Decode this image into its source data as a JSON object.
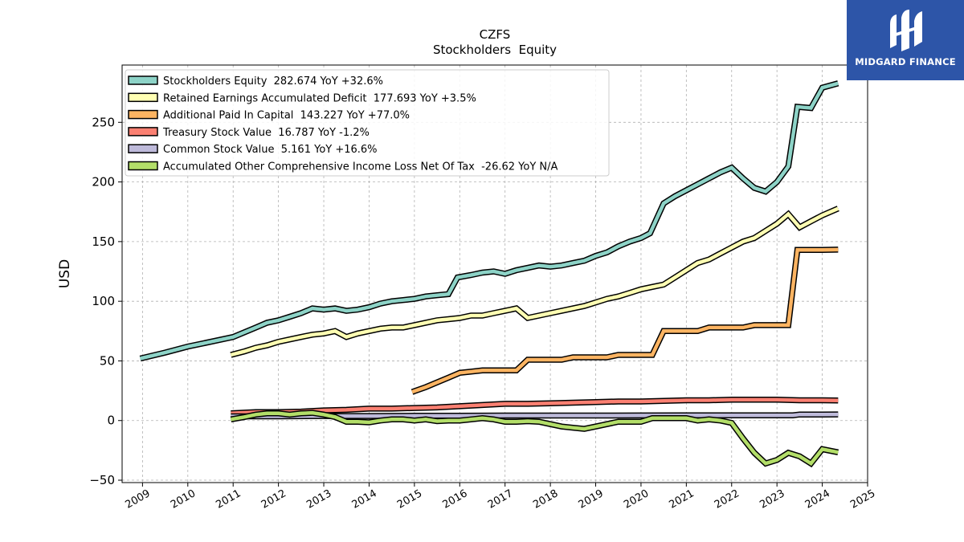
{
  "logo": {
    "text": "MIDGARD FINANCE"
  },
  "chart_data": {
    "type": "line",
    "title": "CZFS",
    "subtitle": "Stockholders  Equity",
    "xlabel": "",
    "ylabel": "USD",
    "xlim": [
      2008.55,
      2025.0
    ],
    "ylim": [
      -52,
      298
    ],
    "xticks": [
      2009,
      2010,
      2011,
      2012,
      2013,
      2014,
      2015,
      2016,
      2017,
      2018,
      2019,
      2020,
      2021,
      2022,
      2023,
      2024,
      2025
    ],
    "yticks": [
      -50,
      0,
      50,
      100,
      150,
      200,
      250
    ],
    "grid": true,
    "legend_position": "top-left",
    "series": [
      {
        "name": "Stockholders Equity  282.674 YoY +32.6%",
        "color": "#8dd3c7",
        "points": [
          [
            2008.95,
            52
          ],
          [
            2009.5,
            57
          ],
          [
            2010,
            62
          ],
          [
            2010.5,
            66
          ],
          [
            2011,
            70
          ],
          [
            2011.25,
            74
          ],
          [
            2011.5,
            78
          ],
          [
            2011.75,
            82
          ],
          [
            2012,
            84
          ],
          [
            2012.25,
            87
          ],
          [
            2012.5,
            90
          ],
          [
            2012.75,
            94
          ],
          [
            2013,
            93
          ],
          [
            2013.25,
            94
          ],
          [
            2013.5,
            92
          ],
          [
            2013.75,
            93
          ],
          [
            2014,
            95
          ],
          [
            2014.25,
            98
          ],
          [
            2014.5,
            100
          ],
          [
            2014.75,
            101
          ],
          [
            2015,
            102
          ],
          [
            2015.25,
            104
          ],
          [
            2015.5,
            105
          ],
          [
            2015.75,
            106
          ],
          [
            2015.95,
            120
          ],
          [
            2016.25,
            122
          ],
          [
            2016.5,
            124
          ],
          [
            2016.75,
            125
          ],
          [
            2017,
            123
          ],
          [
            2017.25,
            126
          ],
          [
            2017.5,
            128
          ],
          [
            2017.75,
            130
          ],
          [
            2018,
            129
          ],
          [
            2018.25,
            130
          ],
          [
            2018.5,
            132
          ],
          [
            2018.75,
            134
          ],
          [
            2019,
            138
          ],
          [
            2019.25,
            141
          ],
          [
            2019.5,
            146
          ],
          [
            2019.75,
            150
          ],
          [
            2020,
            153
          ],
          [
            2020.2,
            157
          ],
          [
            2020.5,
            182
          ],
          [
            2020.75,
            188
          ],
          [
            2021,
            193
          ],
          [
            2021.25,
            198
          ],
          [
            2021.5,
            203
          ],
          [
            2021.75,
            208
          ],
          [
            2022,
            212
          ],
          [
            2022.25,
            203
          ],
          [
            2022.5,
            195
          ],
          [
            2022.75,
            192
          ],
          [
            2023,
            200
          ],
          [
            2023.25,
            213
          ],
          [
            2023.45,
            263
          ],
          [
            2023.75,
            262
          ],
          [
            2024,
            279
          ],
          [
            2024.35,
            282.674
          ]
        ]
      },
      {
        "name": "Retained Earnings Accumulated Deficit  177.693 YoY +3.5%",
        "color": "#ffffb3",
        "points": [
          [
            2010.95,
            55
          ],
          [
            2011.25,
            58
          ],
          [
            2011.5,
            61
          ],
          [
            2011.75,
            63
          ],
          [
            2012,
            66
          ],
          [
            2012.25,
            68
          ],
          [
            2012.5,
            70
          ],
          [
            2012.75,
            72
          ],
          [
            2013,
            73
          ],
          [
            2013.25,
            75
          ],
          [
            2013.5,
            70
          ],
          [
            2013.75,
            73
          ],
          [
            2014,
            75
          ],
          [
            2014.25,
            77
          ],
          [
            2014.5,
            78
          ],
          [
            2014.75,
            78
          ],
          [
            2015,
            80
          ],
          [
            2015.25,
            82
          ],
          [
            2015.5,
            84
          ],
          [
            2015.75,
            85
          ],
          [
            2016,
            86
          ],
          [
            2016.25,
            88
          ],
          [
            2016.5,
            88
          ],
          [
            2016.75,
            90
          ],
          [
            2017,
            92
          ],
          [
            2017.25,
            94
          ],
          [
            2017.5,
            86
          ],
          [
            2017.75,
            88
          ],
          [
            2018,
            90
          ],
          [
            2018.25,
            92
          ],
          [
            2018.5,
            94
          ],
          [
            2018.75,
            96
          ],
          [
            2019,
            99
          ],
          [
            2019.25,
            102
          ],
          [
            2019.5,
            104
          ],
          [
            2019.75,
            107
          ],
          [
            2020,
            110
          ],
          [
            2020.25,
            112
          ],
          [
            2020.5,
            114
          ],
          [
            2020.75,
            120
          ],
          [
            2021,
            126
          ],
          [
            2021.25,
            132
          ],
          [
            2021.5,
            135
          ],
          [
            2021.75,
            140
          ],
          [
            2022,
            145
          ],
          [
            2022.25,
            150
          ],
          [
            2022.5,
            153
          ],
          [
            2022.75,
            159
          ],
          [
            2023,
            165
          ],
          [
            2023.25,
            173
          ],
          [
            2023.5,
            162
          ],
          [
            2023.75,
            167
          ],
          [
            2024,
            172
          ],
          [
            2024.35,
            177.693
          ]
        ]
      },
      {
        "name": "Additional Paid In Capital  143.227 YoY +77.0%",
        "color": "#fdb462",
        "points": [
          [
            2014.95,
            24
          ],
          [
            2015.25,
            28
          ],
          [
            2015.5,
            32
          ],
          [
            2015.75,
            36
          ],
          [
            2016,
            40
          ],
          [
            2016.25,
            41
          ],
          [
            2016.5,
            42
          ],
          [
            2017,
            42
          ],
          [
            2017.25,
            42
          ],
          [
            2017.5,
            51
          ],
          [
            2017.75,
            51
          ],
          [
            2018,
            51
          ],
          [
            2018.25,
            51
          ],
          [
            2018.5,
            53
          ],
          [
            2019,
            53
          ],
          [
            2019.25,
            53
          ],
          [
            2019.5,
            55
          ],
          [
            2020,
            55
          ],
          [
            2020.25,
            55
          ],
          [
            2020.5,
            75
          ],
          [
            2021,
            75
          ],
          [
            2021.25,
            75
          ],
          [
            2021.5,
            78
          ],
          [
            2022,
            78
          ],
          [
            2022.25,
            78
          ],
          [
            2022.5,
            80
          ],
          [
            2023,
            80
          ],
          [
            2023.25,
            80
          ],
          [
            2023.45,
            143
          ],
          [
            2024,
            143
          ],
          [
            2024.35,
            143.227
          ]
        ]
      },
      {
        "name": "Treasury Stock Value  16.787 YoY -1.2%",
        "color": "#fb8072",
        "points": [
          [
            2010.95,
            6
          ],
          [
            2011.5,
            7
          ],
          [
            2012,
            7
          ],
          [
            2012.5,
            7.5
          ],
          [
            2013,
            8.5
          ],
          [
            2013.5,
            9
          ],
          [
            2014,
            10
          ],
          [
            2014.5,
            10
          ],
          [
            2015,
            10.5
          ],
          [
            2015.5,
            11
          ],
          [
            2016,
            12
          ],
          [
            2016.5,
            13
          ],
          [
            2017,
            14
          ],
          [
            2017.5,
            14
          ],
          [
            2018,
            14.5
          ],
          [
            2018.5,
            15
          ],
          [
            2019,
            15.5
          ],
          [
            2019.5,
            16
          ],
          [
            2020,
            16
          ],
          [
            2020.5,
            16.5
          ],
          [
            2021,
            17
          ],
          [
            2021.5,
            17
          ],
          [
            2022,
            17.5
          ],
          [
            2022.5,
            17.5
          ],
          [
            2023,
            17.5
          ],
          [
            2023.5,
            17
          ],
          [
            2024,
            17
          ],
          [
            2024.35,
            16.787
          ]
        ]
      },
      {
        "name": "Common Stock Value  5.161 YoY +16.6%",
        "color": "#bebada",
        "points": [
          [
            2010.95,
            3.5
          ],
          [
            2012,
            3.5
          ],
          [
            2013,
            3.8
          ],
          [
            2014,
            3.8
          ],
          [
            2015,
            4.0
          ],
          [
            2016,
            4.0
          ],
          [
            2017,
            4.2
          ],
          [
            2018,
            4.2
          ],
          [
            2019,
            4.2
          ],
          [
            2020,
            4.3
          ],
          [
            2021,
            4.4
          ],
          [
            2022,
            4.4
          ],
          [
            2023,
            4.4
          ],
          [
            2023.35,
            4.4
          ],
          [
            2023.5,
            5.1
          ],
          [
            2024,
            5.1
          ],
          [
            2024.35,
            5.161
          ]
        ]
      },
      {
        "name": "Accumulated Other Comprehensive Income Loss Net Of Tax  -26.62 YoY N/A",
        "color": "#b3de69",
        "points": [
          [
            2010.95,
            1
          ],
          [
            2011.25,
            3
          ],
          [
            2011.5,
            5
          ],
          [
            2011.75,
            6
          ],
          [
            2012,
            6
          ],
          [
            2012.25,
            5
          ],
          [
            2012.5,
            6
          ],
          [
            2012.75,
            6.5
          ],
          [
            2013,
            5
          ],
          [
            2013.25,
            3
          ],
          [
            2013.5,
            -1
          ],
          [
            2013.75,
            -1
          ],
          [
            2014,
            -1.5
          ],
          [
            2014.25,
            0
          ],
          [
            2014.5,
            1
          ],
          [
            2014.75,
            1
          ],
          [
            2015,
            0
          ],
          [
            2015.25,
            1
          ],
          [
            2015.5,
            -0.5
          ],
          [
            2015.75,
            0
          ],
          [
            2016,
            0
          ],
          [
            2016.25,
            1
          ],
          [
            2016.5,
            2
          ],
          [
            2016.75,
            1
          ],
          [
            2017,
            -1
          ],
          [
            2017.25,
            -1
          ],
          [
            2017.5,
            -0.5
          ],
          [
            2017.75,
            -1
          ],
          [
            2018,
            -3
          ],
          [
            2018.25,
            -5
          ],
          [
            2018.5,
            -6
          ],
          [
            2018.75,
            -7
          ],
          [
            2019,
            -5
          ],
          [
            2019.25,
            -3
          ],
          [
            2019.5,
            -1
          ],
          [
            2019.75,
            -1
          ],
          [
            2020,
            -1
          ],
          [
            2020.25,
            2
          ],
          [
            2020.5,
            2
          ],
          [
            2020.75,
            2
          ],
          [
            2021,
            2
          ],
          [
            2021.25,
            0
          ],
          [
            2021.5,
            1
          ],
          [
            2021.75,
            0
          ],
          [
            2022,
            -2
          ],
          [
            2022.25,
            -15
          ],
          [
            2022.5,
            -27
          ],
          [
            2022.75,
            -36
          ],
          [
            2023,
            -33
          ],
          [
            2023.25,
            -27
          ],
          [
            2023.5,
            -30
          ],
          [
            2023.75,
            -36
          ],
          [
            2024,
            -24
          ],
          [
            2024.35,
            -26.62
          ]
        ]
      }
    ]
  }
}
